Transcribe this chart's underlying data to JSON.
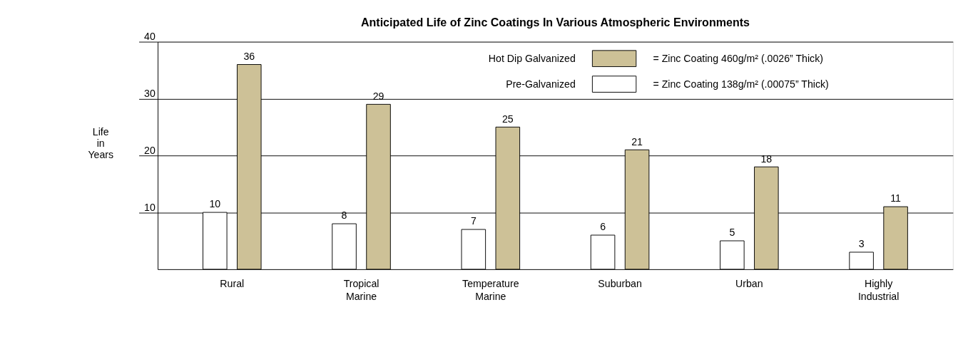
{
  "chart_data": {
    "type": "bar",
    "title": "Anticipated Life of Zinc Coatings In Various Atmospheric Environments",
    "ylabel": "Life in Years",
    "categories": [
      "Rural",
      "Tropical Marine",
      "Temperature Marine",
      "Suburban",
      "Urban",
      "Highly Industrial"
    ],
    "series": [
      {
        "name": "Hot Dip Galvanized",
        "color": "#cdc197",
        "values": [
          36,
          29,
          25,
          21,
          18,
          11
        ]
      },
      {
        "name": "Pre-Galvanized",
        "color": "#ffffff",
        "values": [
          10,
          8,
          7,
          6,
          5,
          3
        ]
      }
    ],
    "annotations": [
      "= Zinc Coating 460g/m² (.0026” Thick)",
      "= Zinc Coating 138g/m² (.00075” Thick)"
    ],
    "ylim": [
      0,
      40
    ],
    "yticks": [
      10,
      20,
      30,
      40
    ],
    "grid": "y",
    "data_labels": true,
    "legend": "top right"
  }
}
